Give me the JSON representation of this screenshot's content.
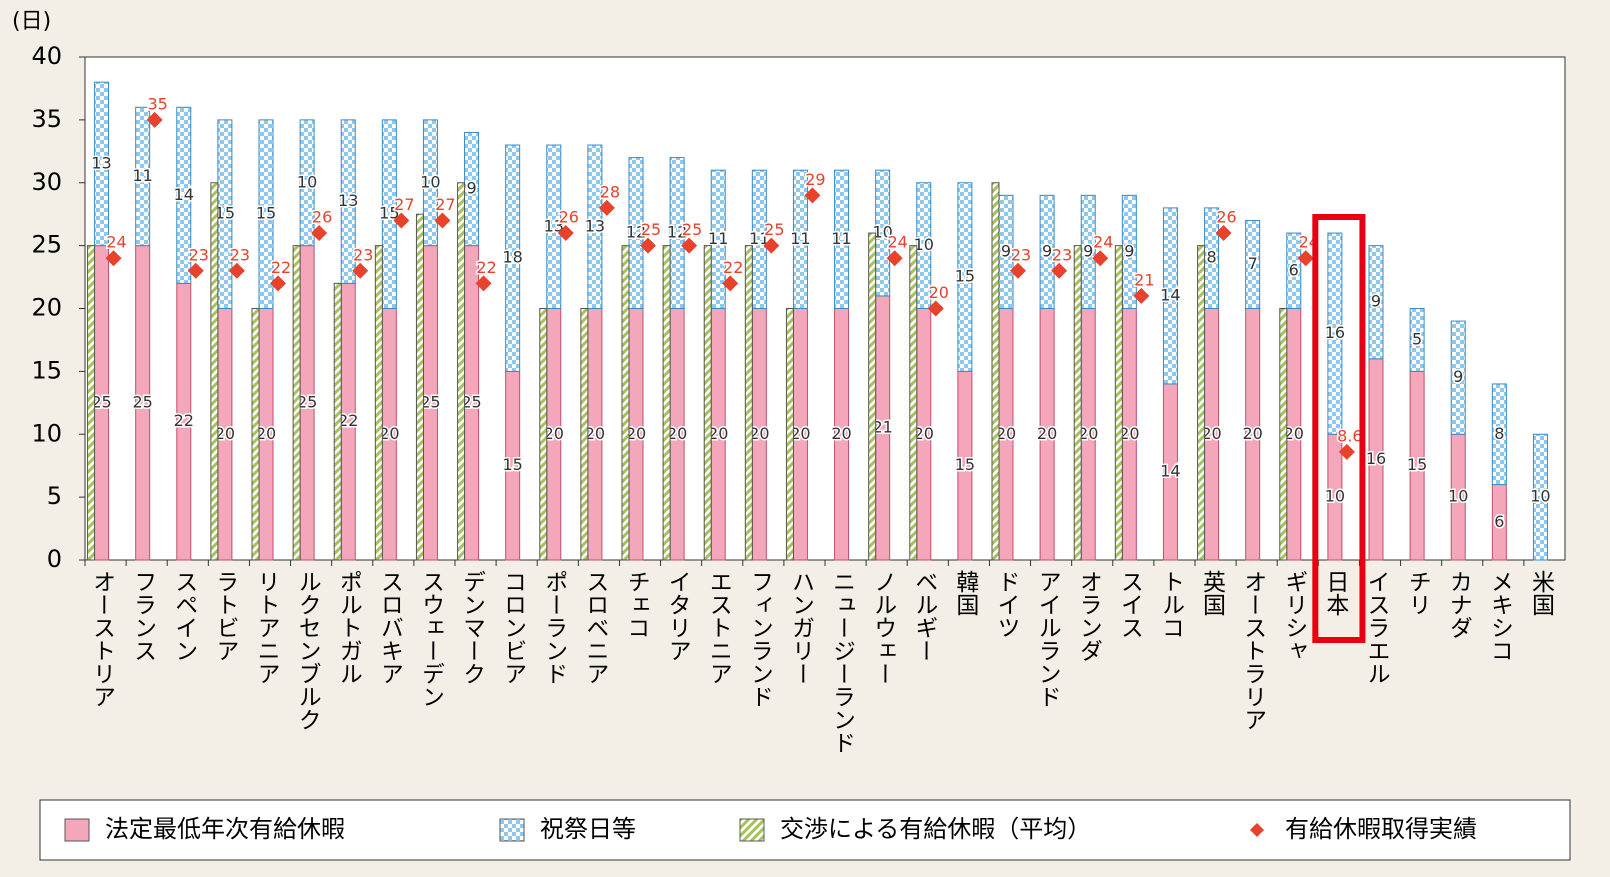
{
  "chart_data": {
    "type": "bar",
    "unit_label": "(日)",
    "categories": [
      "オーストリア",
      "フランス",
      "スペイン",
      "ラトビア",
      "リトアニア",
      "ルクセンブルク",
      "ポルトガル",
      "スロバキア",
      "スウェーデン",
      "デンマーク",
      "コロンビア",
      "ポーランド",
      "スロベニア",
      "チェコ",
      "イタリア",
      "エストニア",
      "フィンランド",
      "ハンガリー",
      "ニュージーランド",
      "ノルウェー",
      "ベルギー",
      "韓国",
      "ドイツ",
      "アイルランド",
      "オランダ",
      "スイス",
      "トルコ",
      "英国",
      "オーストラリア",
      "ギリシャ",
      "日本",
      "イスラエル",
      "チリ",
      "カナダ",
      "メキシコ",
      "米国"
    ],
    "series": [
      {
        "name": "法定最低年次有給休暇",
        "type": "stacked-bar",
        "color": "#f4a7bb",
        "values": [
          25,
          25,
          22,
          20,
          20,
          25,
          22,
          20,
          25,
          25,
          15,
          20,
          20,
          20,
          20,
          20,
          20,
          20,
          20,
          21,
          20,
          15,
          20,
          20,
          20,
          20,
          14,
          20,
          20,
          20,
          10,
          16,
          15,
          10,
          6,
          null
        ]
      },
      {
        "name": "祝祭日等",
        "type": "stacked-bar",
        "color": "#8ec8ee",
        "values": [
          13,
          11,
          14,
          15,
          15,
          10,
          13,
          15,
          10,
          9,
          18,
          13,
          13,
          12,
          12,
          11,
          11,
          11,
          11,
          10,
          10,
          15,
          9,
          9,
          9,
          9,
          14,
          8,
          7,
          6,
          16,
          9,
          5,
          9,
          8,
          10
        ]
      },
      {
        "name": "交渉による有給休暇（平均）",
        "type": "bar",
        "color": "#a8c25a",
        "values": [
          25,
          null,
          null,
          30,
          20,
          25,
          22,
          25,
          27.5,
          30,
          null,
          20,
          20,
          25,
          25,
          25,
          25,
          20,
          null,
          26,
          25,
          null,
          30,
          null,
          25,
          25,
          null,
          25,
          null,
          20,
          null,
          null,
          null,
          null,
          null,
          null
        ]
      },
      {
        "name": "有給休暇取得実績",
        "type": "scatter",
        "color": "#e8412c",
        "values": [
          24,
          35,
          23,
          23,
          22,
          26,
          23,
          27,
          27,
          22,
          null,
          26,
          28,
          25,
          25,
          22,
          25,
          29,
          null,
          24,
          20,
          null,
          23,
          23,
          24,
          21,
          null,
          26,
          null,
          24,
          8.6,
          null,
          null,
          null,
          null,
          null
        ]
      }
    ],
    "ylim": [
      0,
      40
    ],
    "yticks": [
      0,
      5,
      10,
      15,
      20,
      25,
      30,
      35,
      40
    ],
    "grid": false
  }
}
